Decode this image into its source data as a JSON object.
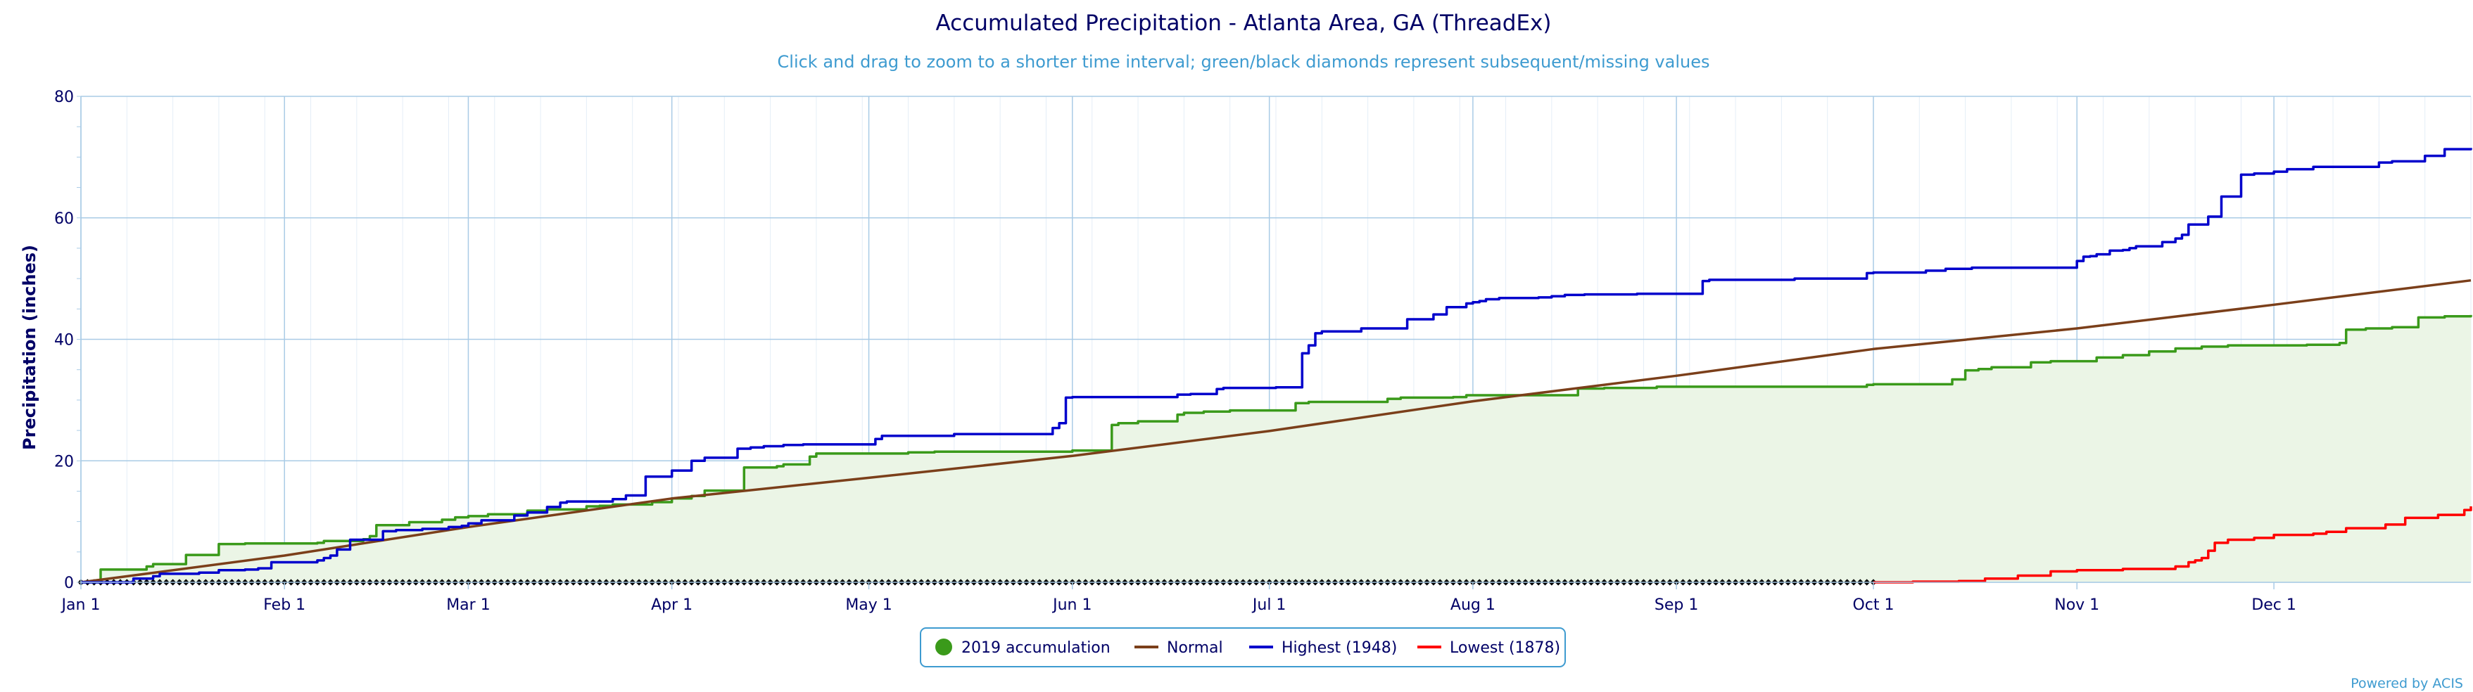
{
  "chart_data": {
    "type": "line",
    "title": "Accumulated Precipitation - Atlanta Area, GA (ThreadEx)",
    "subtitle": "Click and drag to zoom to a shorter time interval; green/black diamonds represent subsequent/missing values",
    "ylabel": "Precipitation (inches)",
    "xlabel": "",
    "ylim": [
      0,
      80
    ],
    "yticks": [
      0,
      20,
      40,
      60,
      80
    ],
    "xlim": [
      1,
      365
    ],
    "xtick_labels": [
      "Jan 1",
      "Feb 1",
      "Mar 1",
      "Apr 1",
      "May 1",
      "Jun 1",
      "Jul 1",
      "Aug 1",
      "Sep 1",
      "Oct 1",
      "Nov 1",
      "Dec 1"
    ],
    "xtick_days": [
      1,
      32,
      60,
      91,
      121,
      152,
      182,
      213,
      244,
      274,
      305,
      335
    ],
    "grid": true,
    "legend_position": "bottom-center",
    "series": [
      {
        "name": "2019 accumulation",
        "color": "#3a9a1a",
        "fill": "#ebf5e6",
        "step": true,
        "x": [
          1,
          4,
          11,
          12,
          17,
          22,
          23,
          26,
          28,
          37,
          38,
          44,
          45,
          46,
          51,
          56,
          58,
          60,
          63,
          69,
          72,
          78,
          80,
          82,
          88,
          91,
          94,
          96,
          102,
          107,
          108,
          112,
          113,
          121,
          126,
          127,
          131,
          152,
          158,
          159,
          162,
          168,
          169,
          172,
          176,
          186,
          188,
          200,
          202,
          210,
          212,
          229,
          233,
          241,
          244,
          273,
          274,
          286,
          288,
          290,
          292,
          298,
          301,
          308,
          312,
          316,
          320,
          324,
          328,
          340,
          345,
          346,
          349,
          353,
          357,
          361,
          365
        ],
        "y": [
          0.0,
          2.1,
          2.6,
          3.0,
          4.5,
          6.3,
          6.3,
          6.4,
          6.4,
          6.5,
          6.8,
          7.1,
          7.6,
          9.4,
          9.9,
          10.3,
          10.7,
          10.9,
          11.2,
          11.8,
          12.0,
          12.5,
          12.6,
          12.8,
          13.2,
          13.8,
          14.2,
          15.1,
          18.9,
          19.1,
          19.4,
          20.7,
          21.2,
          21.2,
          21.2,
          21.4,
          21.5,
          21.7,
          25.9,
          26.2,
          26.5,
          27.6,
          27.9,
          28.1,
          28.3,
          29.5,
          29.7,
          30.2,
          30.4,
          30.5,
          30.8,
          31.9,
          32.0,
          32.2,
          32.2,
          32.5,
          32.6,
          33.4,
          34.9,
          35.1,
          35.4,
          36.2,
          36.4,
          37.0,
          37.4,
          38.0,
          38.5,
          38.8,
          39.0,
          39.1,
          39.4,
          41.6,
          41.8,
          42.0,
          43.6,
          43.8,
          44.0
        ]
      },
      {
        "name": "Normal",
        "color": "#7B3F1A",
        "step": false,
        "x": [
          1,
          32,
          60,
          91,
          121,
          152,
          182,
          213,
          244,
          274,
          305,
          335,
          365
        ],
        "y": [
          0.0,
          4.4,
          9.1,
          13.8,
          17.2,
          20.8,
          24.9,
          29.8,
          34.0,
          38.4,
          41.8,
          45.7,
          49.7
        ]
      },
      {
        "name": "Highest (1948)",
        "color": "#0000CC",
        "step": true,
        "x": [
          1,
          9,
          12,
          13,
          19,
          22,
          26,
          28,
          30,
          37,
          38,
          39,
          40,
          42,
          47,
          49,
          53,
          57,
          59,
          60,
          62,
          67,
          69,
          72,
          74,
          75,
          80,
          82,
          84,
          87,
          91,
          94,
          96,
          101,
          103,
          105,
          108,
          111,
          121,
          122,
          123,
          134,
          149,
          150,
          151,
          152,
          153,
          168,
          170,
          174,
          175,
          183,
          187,
          188,
          189,
          190,
          196,
          203,
          207,
          209,
          212,
          213,
          214,
          215,
          217,
          223,
          225,
          227,
          230,
          238,
          248,
          249,
          250,
          262,
          273,
          274,
          282,
          285,
          289,
          295,
          305,
          306,
          307,
          308,
          310,
          312,
          313,
          314,
          318,
          320,
          321,
          322,
          325,
          327,
          330,
          332,
          335,
          337,
          341,
          351,
          353,
          358,
          361,
          365
        ],
        "y": [
          0.0,
          0.6,
          1.0,
          1.4,
          1.6,
          2.0,
          2.1,
          2.3,
          3.3,
          3.6,
          4.0,
          4.4,
          5.4,
          7.0,
          8.4,
          8.6,
          8.8,
          9.1,
          9.3,
          9.7,
          10.2,
          11.0,
          11.5,
          12.4,
          13.1,
          13.3,
          13.3,
          13.7,
          14.3,
          17.4,
          18.4,
          20.0,
          20.5,
          22.0,
          22.2,
          22.4,
          22.6,
          22.7,
          22.7,
          23.6,
          24.1,
          24.4,
          25.4,
          26.2,
          30.4,
          30.5,
          30.5,
          30.9,
          31.0,
          31.8,
          32.0,
          32.1,
          37.7,
          39.0,
          41.0,
          41.3,
          41.8,
          43.3,
          44.1,
          45.3,
          45.9,
          46.1,
          46.3,
          46.6,
          46.8,
          46.9,
          47.1,
          47.3,
          47.4,
          47.5,
          49.6,
          49.8,
          49.8,
          50.0,
          50.9,
          51.0,
          51.3,
          51.6,
          51.8,
          51.8,
          52.9,
          53.6,
          53.7,
          54.0,
          54.6,
          54.7,
          55.0,
          55.3,
          56.0,
          56.6,
          57.2,
          58.9,
          60.2,
          63.5,
          67.1,
          67.3,
          67.6,
          68.0,
          68.4,
          69.1,
          69.3,
          70.2,
          71.3,
          71.5
        ]
      },
      {
        "name": "Lowest (1878)",
        "color": "#FF0000",
        "step": true,
        "x": [
          274,
          280,
          287,
          291,
          296,
          301,
          305,
          312,
          320,
          322,
          323,
          324,
          325,
          326,
          328,
          332,
          335,
          341,
          343,
          346,
          352,
          355,
          360,
          364,
          365
        ],
        "y": [
          0.0,
          0.1,
          0.2,
          0.6,
          1.1,
          1.8,
          2.0,
          2.2,
          2.6,
          3.3,
          3.6,
          4.0,
          5.2,
          6.5,
          7.0,
          7.3,
          7.8,
          8.0,
          8.3,
          8.9,
          9.5,
          10.6,
          11.1,
          11.9,
          12.5
        ]
      }
    ],
    "missing_markers": {
      "color": "#000000",
      "x_from": 1,
      "x_to": 274,
      "y": 0
    }
  },
  "credit": "Powered by ACIS"
}
